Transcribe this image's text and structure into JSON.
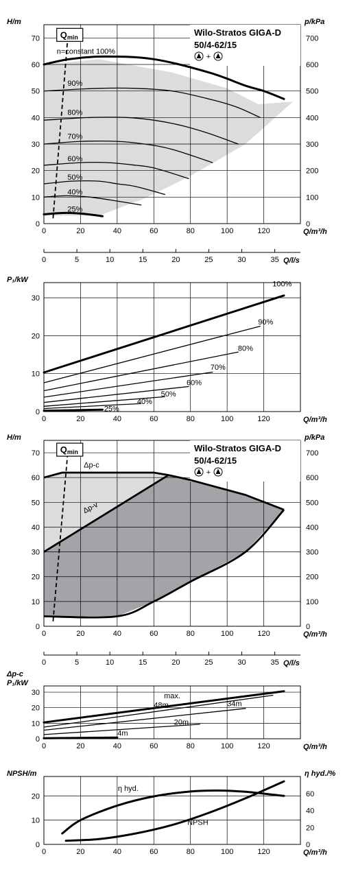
{
  "colors": {
    "light_area": "#dcdcde",
    "dark_area": "#a4a4a8",
    "ink": "#000000"
  },
  "chart_data": [
    {
      "id": "hq",
      "type": "line",
      "title": "Wilo-Stratos GIGA-D",
      "subtitle": "50/4-62/15",
      "xlabel": "Q/m³/h",
      "ylabel": "H/m",
      "y2label": "p/kPa",
      "xlim": [
        0,
        140
      ],
      "ylim": [
        0,
        75
      ],
      "x_ticks": [
        "0",
        "20",
        "40",
        "60",
        "80",
        "100",
        "120"
      ],
      "y_ticks": [
        "0",
        "10",
        "20",
        "30",
        "40",
        "50",
        "60",
        "70"
      ],
      "y2_ticks": [
        "0",
        "100",
        "200",
        "300",
        "400",
        "500",
        "600",
        "700"
      ],
      "qmin_label": "Q",
      "qmin_sub": "min",
      "qmin_line": [
        [
          5,
          2
        ],
        [
          13,
          70
        ]
      ],
      "region": [
        [
          0,
          60
        ],
        [
          30,
          62
        ],
        [
          70,
          57
        ],
        [
          100,
          51
        ],
        [
          117,
          45
        ],
        [
          136,
          46
        ],
        [
          110,
          30
        ],
        [
          80,
          18
        ],
        [
          55,
          9.5
        ],
        [
          30,
          3
        ],
        [
          0,
          3
        ]
      ],
      "series": [
        {
          "name": "n=constant 100%",
          "x": [
            0,
            14,
            33,
            60,
            90,
            110,
            120,
            131
          ],
          "y": [
            60,
            62,
            63,
            62,
            57,
            52,
            50,
            47
          ],
          "bold": true
        },
        {
          "name": "90%",
          "x": [
            0,
            30,
            50,
            70,
            90,
            105,
            118
          ],
          "y": [
            50,
            51,
            51,
            50,
            47,
            44,
            40
          ]
        },
        {
          "name": "80%",
          "x": [
            0,
            25,
            45,
            60,
            75,
            90,
            106
          ],
          "y": [
            39,
            40,
            40,
            39,
            37,
            34,
            30
          ]
        },
        {
          "name": "70%",
          "x": [
            0,
            20,
            40,
            55,
            70,
            92
          ],
          "y": [
            30,
            31,
            31,
            30,
            28,
            23
          ]
        },
        {
          "name": "60%",
          "x": [
            0,
            20,
            35,
            50,
            60,
            79
          ],
          "y": [
            22,
            23,
            23,
            22,
            21,
            17
          ]
        },
        {
          "name": "50%",
          "x": [
            0,
            15,
            30,
            40,
            50,
            66
          ],
          "y": [
            15,
            16,
            16,
            15,
            14,
            11
          ]
        },
        {
          "name": "40%",
          "x": [
            0,
            12,
            25,
            40,
            53
          ],
          "y": [
            10,
            10.5,
            10,
            8.5,
            7
          ]
        },
        {
          "name": "25%",
          "x": [
            0,
            10,
            20,
            32
          ],
          "y": [
            3.5,
            4,
            3.8,
            2.8
          ],
          "bold": true
        }
      ],
      "labels": [
        {
          "text": "n=constant 100%",
          "x": 23,
          "y": 64
        },
        {
          "text": "90%",
          "x": 17,
          "y": 52
        },
        {
          "text": "80%",
          "x": 17,
          "y": 41
        },
        {
          "text": "70%",
          "x": 17,
          "y": 32
        },
        {
          "text": "60%",
          "x": 17,
          "y": 23.5
        },
        {
          "text": "50%",
          "x": 17,
          "y": 16.5
        },
        {
          "text": "40%",
          "x": 17,
          "y": 11
        },
        {
          "text": "25%",
          "x": 17,
          "y": 4.5
        }
      ]
    },
    {
      "id": "qls",
      "type": "axis",
      "xlabel": "Q/l/s",
      "xlim": [
        0,
        38.89
      ],
      "x_ticks": [
        "0",
        "5",
        "10",
        "15",
        "20",
        "25",
        "30",
        "35"
      ]
    },
    {
      "id": "p1",
      "type": "line",
      "xlabel": "Q/m³/h",
      "ylabel": "P₁/kW",
      "xlim": [
        0,
        140
      ],
      "ylim": [
        0,
        34
      ],
      "x_ticks": [
        "0",
        "20",
        "40",
        "60",
        "80",
        "100",
        "120"
      ],
      "y_ticks": [
        "0",
        "10",
        "20",
        "30"
      ],
      "series": [
        {
          "name": "100%",
          "x": [
            0,
            131
          ],
          "y": [
            10.3,
            30.6
          ],
          "bold": true
        },
        {
          "name": "90%",
          "x": [
            0,
            118
          ],
          "y": [
            7.6,
            22.5
          ]
        },
        {
          "name": "80%",
          "x": [
            0,
            106
          ],
          "y": [
            5.5,
            15.7
          ]
        },
        {
          "name": "70%",
          "x": [
            0,
            92
          ],
          "y": [
            3.8,
            10.4
          ]
        },
        {
          "name": "60%",
          "x": [
            0,
            79
          ],
          "y": [
            2.4,
            6.6
          ]
        },
        {
          "name": "50%",
          "x": [
            0,
            66
          ],
          "y": [
            1.4,
            3.9
          ]
        },
        {
          "name": "40%",
          "x": [
            0,
            53
          ],
          "y": [
            0.8,
            2.1
          ]
        },
        {
          "name": "25%",
          "x": [
            0,
            32
          ],
          "y": [
            0.2,
            0.5
          ],
          "bold": true
        }
      ],
      "labels": [
        {
          "text": "100%",
          "x": 130,
          "y": 33
        },
        {
          "text": "90%",
          "x": 121,
          "y": 23
        },
        {
          "text": "80%",
          "x": 110,
          "y": 16
        },
        {
          "text": "70%",
          "x": 95,
          "y": 11
        },
        {
          "text": "60%",
          "x": 82,
          "y": 7
        },
        {
          "text": "50%",
          "x": 68,
          "y": 4
        },
        {
          "text": "40%",
          "x": 55,
          "y": 2
        },
        {
          "text": "25%",
          "x": 37,
          "y": 0.1
        }
      ]
    },
    {
      "id": "dp",
      "type": "area",
      "title": "Wilo-Stratos GIGA-D",
      "subtitle": "50/4-62/15",
      "xlabel": "Q/m³/h",
      "ylabel": "H/m",
      "y2label": "p/kPa",
      "xlim": [
        0,
        140
      ],
      "ylim": [
        0,
        75
      ],
      "x_ticks": [
        "0",
        "20",
        "40",
        "60",
        "80",
        "100",
        "120"
      ],
      "y_ticks": [
        "0",
        "10",
        "20",
        "30",
        "40",
        "50",
        "60",
        "70"
      ],
      "y2_ticks": [
        "0",
        "100",
        "200",
        "300",
        "400",
        "500",
        "600",
        "700"
      ],
      "qmin_label": "Q",
      "qmin_sub": "min",
      "qmin_line": [
        [
          5,
          2
        ],
        [
          13,
          70
        ]
      ],
      "light_region": [
        [
          0,
          60
        ],
        [
          10,
          62
        ],
        [
          60,
          62
        ],
        [
          68,
          61
        ],
        [
          0,
          30
        ]
      ],
      "dark_region": [
        [
          0,
          30
        ],
        [
          68,
          61
        ],
        [
          80,
          59
        ],
        [
          110,
          53
        ],
        [
          131,
          47
        ],
        [
          110,
          30
        ],
        [
          80,
          18
        ],
        [
          60,
          10
        ],
        [
          40,
          4
        ],
        [
          0,
          4
        ]
      ],
      "series": [
        {
          "name": "Δp-c",
          "x": [
            0,
            10,
            60,
            68,
            80,
            110,
            131
          ],
          "y": [
            60,
            62,
            62,
            61,
            59,
            53,
            47
          ],
          "bold": true
        },
        {
          "name": "Δp-v",
          "x": [
            0,
            68
          ],
          "y": [
            30,
            61
          ],
          "bold": true
        },
        {
          "name": "min",
          "x": [
            0,
            40,
            60,
            80,
            110,
            131
          ],
          "y": [
            4,
            4,
            10,
            18,
            30,
            47
          ],
          "bold": true
        }
      ],
      "labels": [
        {
          "text": "Δp-c",
          "x": 26,
          "y": 64
        },
        {
          "text": "Δp-v",
          "x": 26,
          "y": 47,
          "rotate": -28
        }
      ]
    },
    {
      "id": "qls2",
      "type": "axis",
      "xlabel": "Q/l/s",
      "xlim": [
        0,
        38.89
      ],
      "x_ticks": [
        "0",
        "5",
        "10",
        "15",
        "20",
        "25",
        "30",
        "35"
      ]
    },
    {
      "id": "p1dp",
      "type": "line",
      "xlabel": "Q/m³/h",
      "ylabel": "P₁/kW",
      "ylabel_top": "Δp-c",
      "xlim": [
        0,
        140
      ],
      "ylim": [
        0,
        34
      ],
      "x_ticks": [
        "0",
        "20",
        "40",
        "60",
        "80",
        "100",
        "120"
      ],
      "y_ticks": [
        "0",
        "10",
        "20",
        "30"
      ],
      "series": [
        {
          "name": "max.",
          "x": [
            0,
            131
          ],
          "y": [
            10.5,
            30.6
          ],
          "bold": true
        },
        {
          "name": "48m",
          "x": [
            0,
            125
          ],
          "y": [
            7.5,
            28
          ]
        },
        {
          "name": "34m",
          "x": [
            0,
            110
          ],
          "y": [
            5.5,
            19.5
          ]
        },
        {
          "name": "20m",
          "x": [
            0,
            85
          ],
          "y": [
            2.7,
            9.3
          ]
        },
        {
          "name": "4m",
          "x": [
            0,
            40
          ],
          "y": [
            0.3,
            0.8
          ],
          "bold": true
        }
      ],
      "labels": [
        {
          "text": "max.",
          "x": 70,
          "y": 26
        },
        {
          "text": "48m",
          "x": 64,
          "y": 20
        },
        {
          "text": "34m",
          "x": 104,
          "y": 21
        },
        {
          "text": "20m",
          "x": 75,
          "y": 9
        },
        {
          "text": "4m",
          "x": 43,
          "y": 2
        }
      ]
    },
    {
      "id": "npsh",
      "type": "line",
      "xlabel": "Q/m³/h",
      "ylabel": "NPSH/m",
      "y2label": "η hyd./%",
      "xlim": [
        0,
        140
      ],
      "ylim": [
        0,
        28
      ],
      "x_ticks": [
        "0",
        "20",
        "40",
        "60",
        "80",
        "100",
        "120"
      ],
      "y_ticks": [
        "0",
        "10",
        "20"
      ],
      "y2_ticks": [
        "0",
        "20",
        "40",
        "60"
      ],
      "series": [
        {
          "name": "η hyd.",
          "x": [
            10,
            20,
            40,
            60,
            80,
            95,
            110,
            131
          ],
          "y": [
            4.5,
            10,
            16,
            19.8,
            21.8,
            22.2,
            21.7,
            20
          ],
          "bold": true
        },
        {
          "name": "NPSH",
          "x": [
            12,
            30,
            50,
            70,
            90,
            110,
            131
          ],
          "y": [
            1.5,
            2.2,
            4.5,
            8,
            13,
            19,
            26
          ],
          "bold": true
        }
      ],
      "labels": [
        {
          "text": "η hyd.",
          "x": 46,
          "y": 22
        },
        {
          "text": "NPSH",
          "x": 84,
          "y": 8
        }
      ]
    }
  ]
}
